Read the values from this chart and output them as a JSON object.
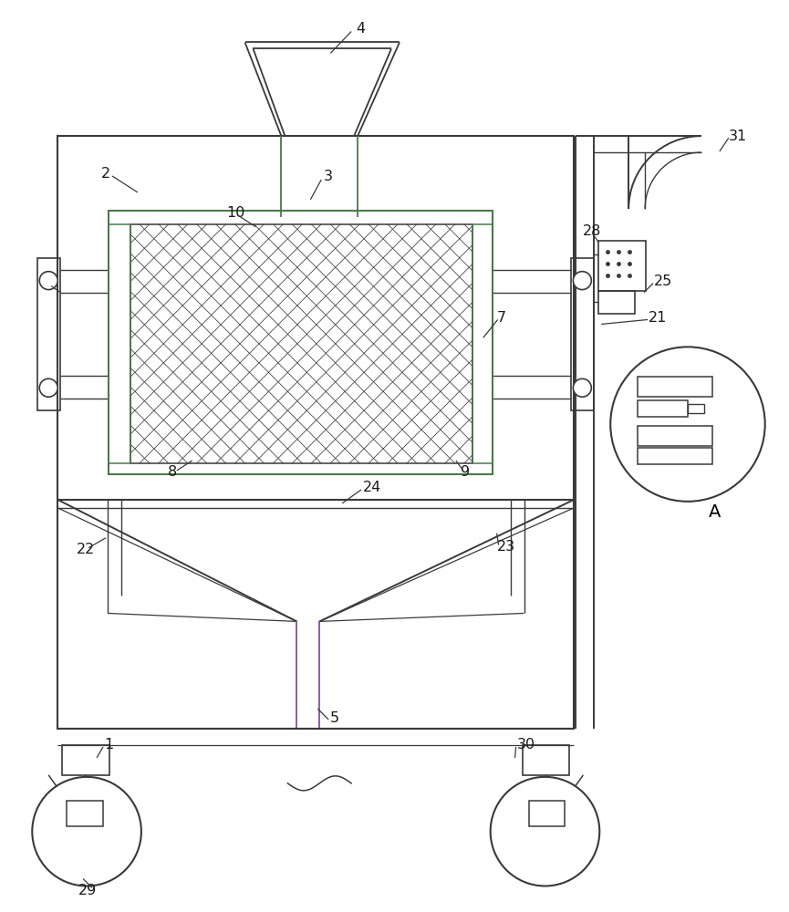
{
  "bg_color": "#ffffff",
  "line_color": "#3a3a3a",
  "green_color": "#4a7a4a",
  "purple_color": "#8050a0",
  "label_color": "#1a1a1a",
  "fig_width": 8.65,
  "fig_height": 10.0
}
